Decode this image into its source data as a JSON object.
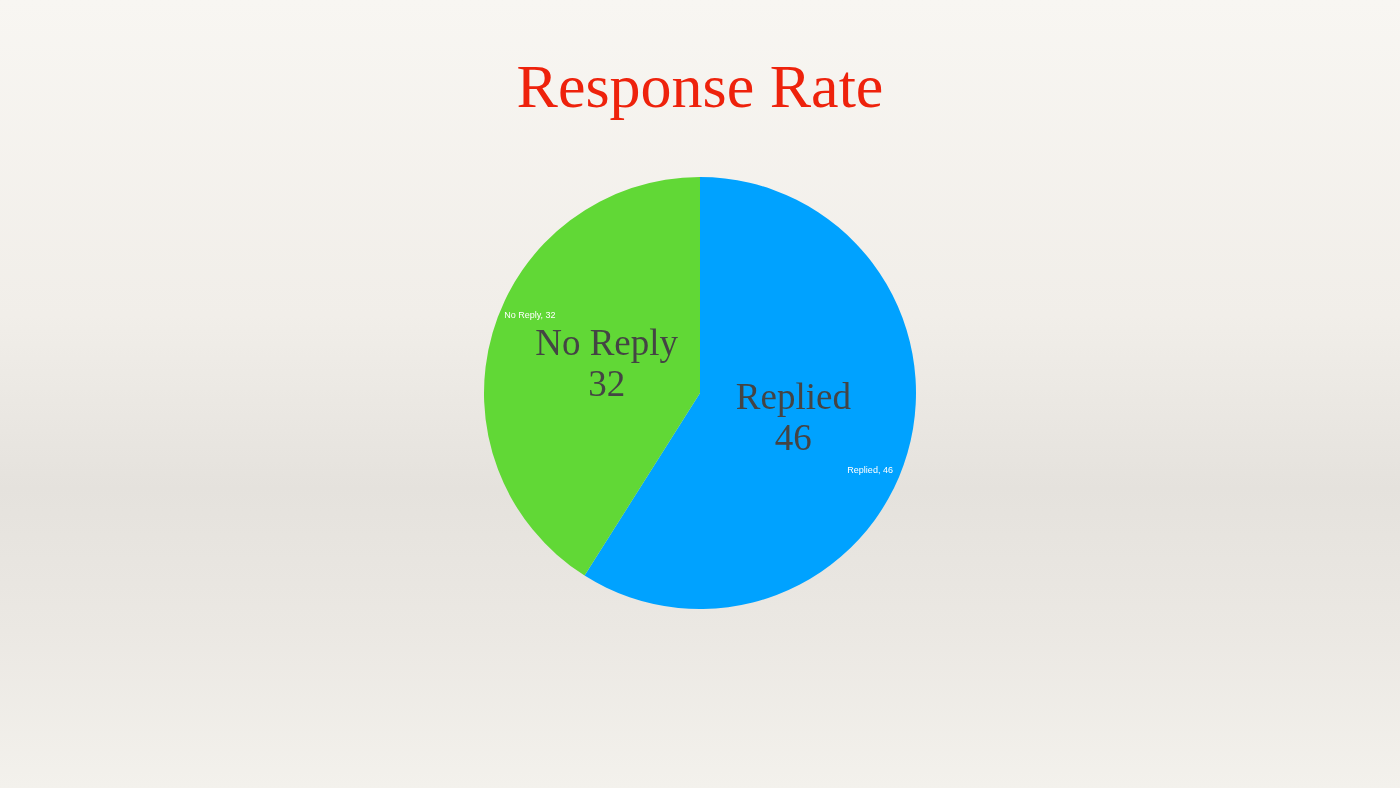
{
  "chart_data": {
    "type": "pie",
    "title": "Response Rate",
    "categories": [
      "Replied",
      "No Reply"
    ],
    "values": [
      46,
      32
    ],
    "colors": [
      "#00a2ff",
      "#61d836"
    ],
    "data_labels": true,
    "legend": false,
    "annotations": [
      "Replied, 46",
      "No Reply, 32"
    ]
  }
}
